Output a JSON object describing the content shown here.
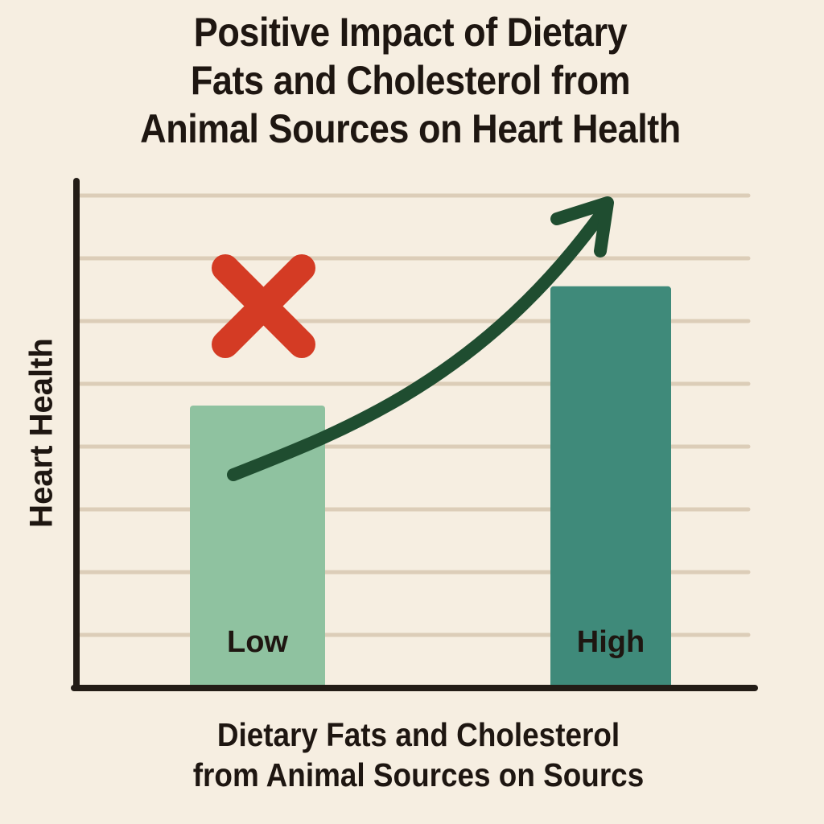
{
  "chart_data": {
    "type": "bar",
    "title_lines": [
      "Positive Impact of Dietary",
      "Fats and Cholesterol from",
      "Animal Sources on Heart Health"
    ],
    "xlabel_lines": [
      "Dietary Fats and Cholesterol",
      "from Animal Sources on Sourcs"
    ],
    "ylabel": "Heart Health",
    "categories": [
      "Low",
      "High"
    ],
    "values": [
      4.5,
      6.4
    ],
    "ylim": [
      0,
      7.6
    ],
    "grid": true,
    "gridlines": [
      1,
      2,
      3,
      4,
      5,
      6,
      7,
      8
    ],
    "y_tick_labels": [],
    "annotations": [
      {
        "type": "cross-mark",
        "near": "Low",
        "meaning": "negative"
      },
      {
        "type": "trend-arrow",
        "direction": "upward",
        "from": "Low",
        "to": "High"
      }
    ]
  },
  "colors": {
    "background": "#f6eee1",
    "grid": "#dccdb8",
    "axis": "#231c16",
    "bar_low": "#8fc2a0",
    "bar_high": "#3f8a7a",
    "arrow": "#1f4d30",
    "cross": "#d43b24",
    "text": "#1e1611"
  }
}
